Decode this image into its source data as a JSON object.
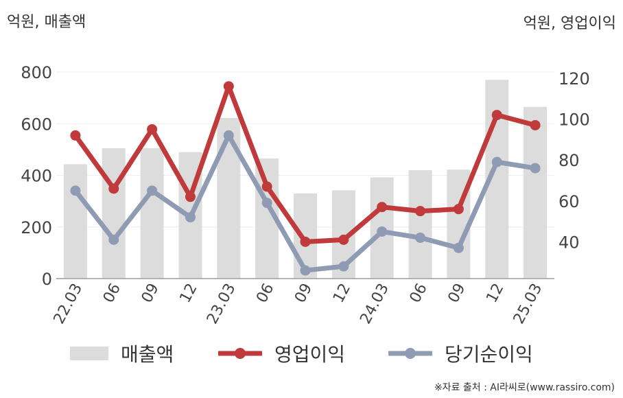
{
  "units": {
    "left": "억원, 매출액",
    "right": "억원, 영업이익"
  },
  "source": "※자료 출처 : AI라씨로(www.rassiro.com)",
  "legend": {
    "revenue": "매출액",
    "op_income": "영업이익",
    "net_income": "당기순이익"
  },
  "colors": {
    "revenue": "#dcdcdc",
    "op_income": "#c0393b",
    "net_income": "#8f9bb3",
    "axis": "#9e9e9e",
    "grid": "#eeeeee",
    "text": "#444444"
  },
  "chart_data": {
    "type": "bar+line",
    "categories": [
      "22.03",
      "06",
      "09",
      "12",
      "23.03",
      "06",
      "09",
      "12",
      "24.03",
      "06",
      "09",
      "12",
      "25.03"
    ],
    "y_left": {
      "ticks": [
        0,
        200,
        400,
        600,
        800
      ],
      "range": [
        0,
        800
      ]
    },
    "y_right": {
      "ticks": [
        40,
        60,
        80,
        100,
        120
      ],
      "range": [
        22,
        123
      ]
    },
    "series": [
      {
        "name": "매출액",
        "type": "bar",
        "axis": "left",
        "values": [
          443,
          505,
          505,
          490,
          622,
          465,
          330,
          342,
          392,
          420,
          422,
          770,
          665
        ]
      },
      {
        "name": "영업이익",
        "type": "line",
        "axis": "right",
        "values": [
          92,
          66,
          95,
          62,
          116,
          67,
          40,
          41,
          57,
          55,
          56,
          102,
          97
        ]
      },
      {
        "name": "당기순이익",
        "type": "line",
        "axis": "right",
        "values": [
          65,
          41,
          65,
          52,
          92,
          59,
          26,
          28,
          45,
          42,
          37,
          79,
          76
        ]
      }
    ]
  }
}
